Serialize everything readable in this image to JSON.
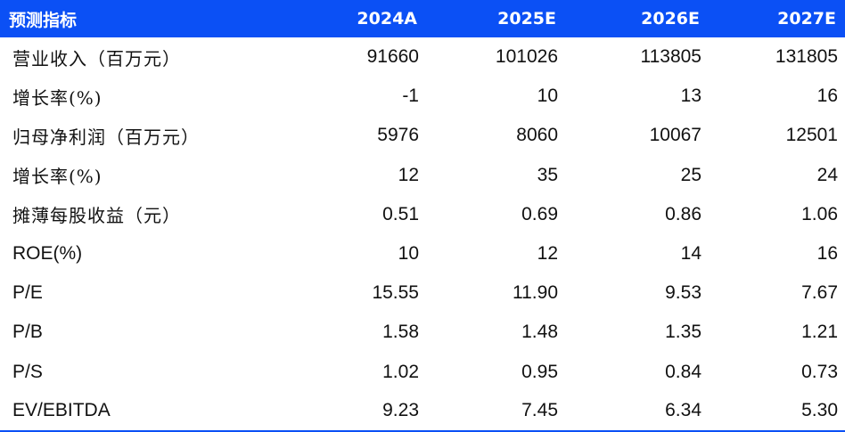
{
  "header": {
    "label": "预测指标",
    "years": [
      "2024A",
      "2025E",
      "2026E",
      "2027E"
    ]
  },
  "rows": [
    {
      "label": "营业收入（百万元）",
      "values": [
        "91660",
        "101026",
        "113805",
        "131805"
      ]
    },
    {
      "label": "增长率(%)",
      "values": [
        "-1",
        "10",
        "13",
        "16"
      ]
    },
    {
      "label": "归母净利润（百万元）",
      "values": [
        "5976",
        "8060",
        "10067",
        "12501"
      ]
    },
    {
      "label": "增长率(%)",
      "values": [
        "12",
        "35",
        "25",
        "24"
      ]
    },
    {
      "label": "摊薄每股收益（元）",
      "values": [
        "0.51",
        "0.69",
        "0.86",
        "1.06"
      ]
    },
    {
      "label": "ROE(%)",
      "values": [
        "10",
        "12",
        "14",
        "16"
      ]
    },
    {
      "label": "P/E",
      "values": [
        "15.55",
        "11.90",
        "9.53",
        "7.67"
      ]
    },
    {
      "label": "P/B",
      "values": [
        "1.58",
        "1.48",
        "1.35",
        "1.21"
      ]
    },
    {
      "label": "P/S",
      "values": [
        "1.02",
        "0.95",
        "0.84",
        "0.73"
      ]
    },
    {
      "label": "EV/EBITDA",
      "values": [
        "9.23",
        "7.45",
        "6.34",
        "5.30"
      ]
    }
  ],
  "colors": {
    "header_bg": "#0b50f5",
    "header_text": "#ffffff",
    "body_text": "#111111"
  }
}
